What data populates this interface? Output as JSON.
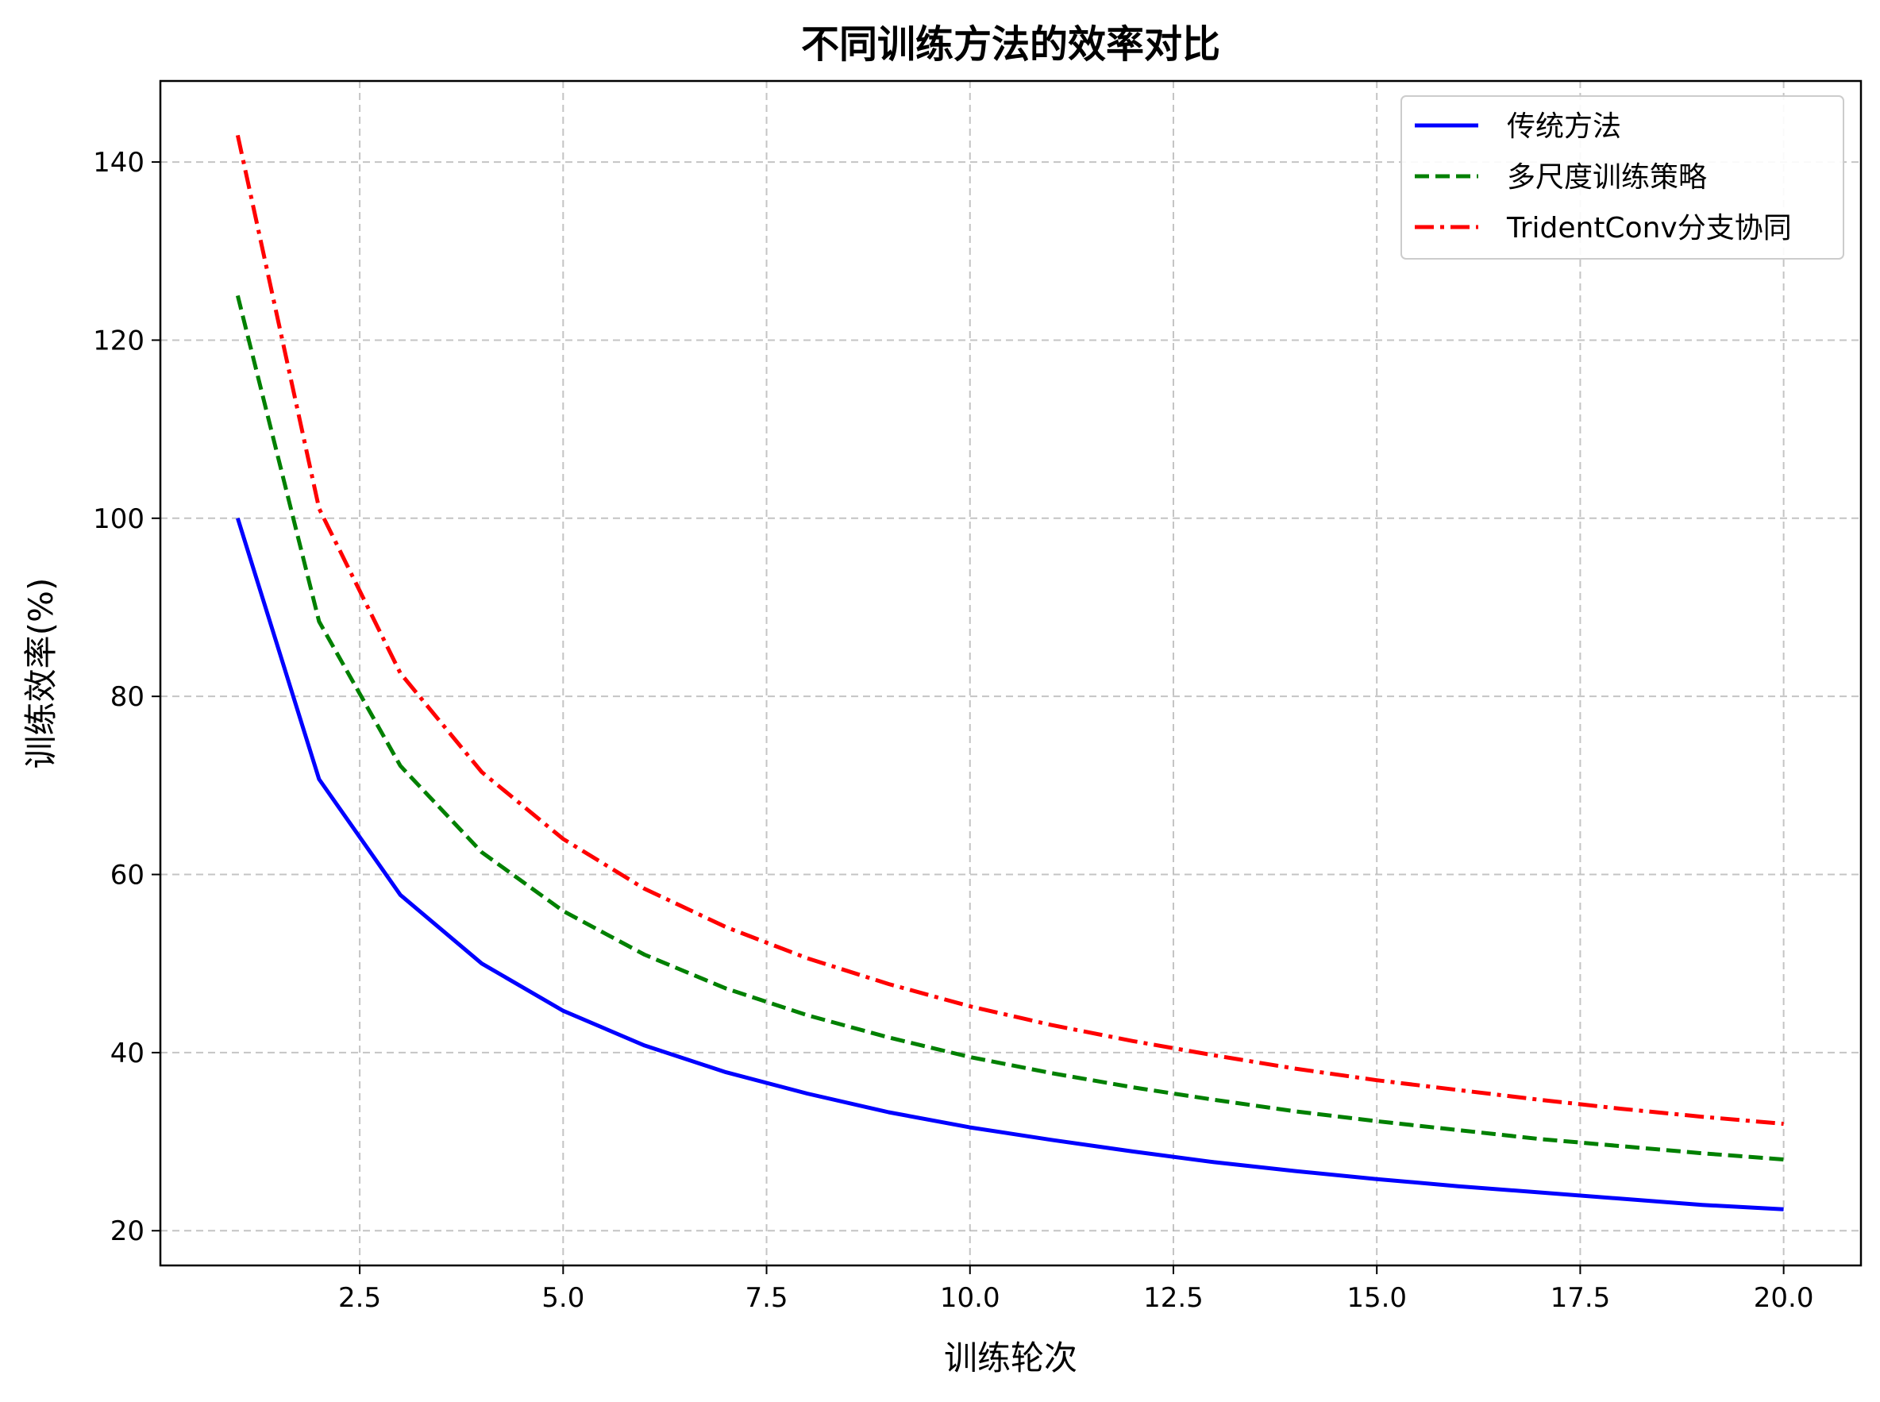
{
  "chart_data": {
    "type": "line",
    "title": "不同训练方法的效率对比",
    "xlabel": "训练轮次",
    "ylabel": "训练效率(%)",
    "xlim": [
      0.05,
      20.95
    ],
    "ylim": [
      16.1,
      149.1
    ],
    "xticks": [
      2.5,
      5.0,
      7.5,
      10.0,
      12.5,
      15.0,
      17.5,
      20.0
    ],
    "xtick_labels": [
      "2.5",
      "5.0",
      "7.5",
      "10.0",
      "12.5",
      "15.0",
      "17.5",
      "20.0"
    ],
    "yticks": [
      20,
      40,
      60,
      80,
      100,
      120,
      140
    ],
    "ytick_labels": [
      "20",
      "40",
      "60",
      "80",
      "100",
      "120",
      "140"
    ],
    "grid": true,
    "legend_position": "top-right",
    "x": [
      1,
      2,
      3,
      4,
      5,
      6,
      7,
      8,
      9,
      10,
      11,
      12,
      13,
      14,
      15,
      16,
      17,
      18,
      19,
      20
    ],
    "series": [
      {
        "name": "传统方法",
        "color": "#0000ff",
        "style": "solid",
        "values": [
          100.0,
          70.7,
          57.7,
          50.0,
          44.7,
          40.8,
          37.8,
          35.4,
          33.3,
          31.6,
          30.2,
          28.9,
          27.7,
          26.7,
          25.8,
          25.0,
          24.3,
          23.6,
          22.9,
          22.4
        ]
      },
      {
        "name": "多尺度训练策略",
        "color": "#008000",
        "style": "dashed",
        "values": [
          125.0,
          88.4,
          72.2,
          62.5,
          55.9,
          51.0,
          47.2,
          44.2,
          41.7,
          39.5,
          37.7,
          36.1,
          34.7,
          33.4,
          32.3,
          31.3,
          30.3,
          29.5,
          28.7,
          28.0
        ]
      },
      {
        "name": "TridentConv分支协同",
        "color": "#ff0000",
        "style": "dashdot",
        "values": [
          143.0,
          101.1,
          82.6,
          71.5,
          64.0,
          58.4,
          54.1,
          50.6,
          47.7,
          45.2,
          43.1,
          41.3,
          39.7,
          38.2,
          36.9,
          35.8,
          34.7,
          33.7,
          32.8,
          32.0
        ]
      }
    ]
  }
}
